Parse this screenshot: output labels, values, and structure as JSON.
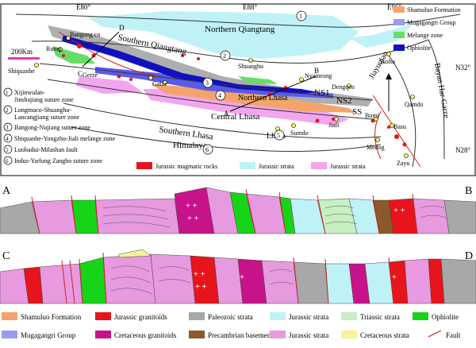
{
  "map": {
    "longitudes": [
      "E80°",
      "E88°",
      "E96°"
    ],
    "latitudes": [
      "N32°",
      "N28°"
    ],
    "scale": "200Km",
    "terranes": [
      "Northern Qiangtang",
      "Southern Qiangtang",
      "Northern Lhasa",
      "Central Lhasa",
      "Southern Lhasa",
      "Himalaya",
      "Bayan Har-Garze",
      "Jiayuqiao"
    ],
    "places": [
      "Bangong co",
      "Rutog",
      "Shiquanhe",
      "Gerze",
      "Gaize",
      "Shuanghu",
      "Nyainrong",
      "Dengqen",
      "Yushu",
      "Qamdo",
      "Jiali",
      "Lhasa",
      "Sumdo",
      "Bomi",
      "Basu",
      "Medog",
      "Zayu"
    ],
    "profile_points": [
      "A",
      "B",
      "C",
      "D"
    ],
    "zone_labels": [
      "NS1",
      "NS2",
      "SS"
    ],
    "sutures": [
      {
        "num": "1",
        "name": "Xijinwulan-\nJinshajiang suture zone"
      },
      {
        "num": "2",
        "name": "Longmuco-Shuanghu-\nLancangjiang suture zone"
      },
      {
        "num": "3",
        "name": "Bangong-Nujiang suture zone"
      },
      {
        "num": "4",
        "name": "Shiquanhe-Yongzhu-Jiali melange zone"
      },
      {
        "num": "5",
        "name": "Luobadui-Milashan fault"
      },
      {
        "num": "6",
        "name": "Indus-Yarlung Zangbo suture zone"
      }
    ],
    "legend_right": [
      {
        "label": "Shamuluo Formation",
        "color": "#f4a46a"
      },
      {
        "label": "Mugagangri Group",
        "color": "#9b9bf0"
      },
      {
        "label": "Melange zone",
        "color": "#66dd66"
      },
      {
        "label": "Ophiolite",
        "color": "#1010c0"
      }
    ],
    "legend_bottom_map": [
      {
        "label": "Jurassic magmatic rocks",
        "color": "#e8141c"
      },
      {
        "label": "Jurassic strata",
        "color": "#bff2f7"
      },
      {
        "label": "Jurassic strata",
        "color": "#f2a6f0"
      }
    ]
  },
  "sections": {
    "ab_left": "A",
    "ab_right": "B",
    "cd_left": "C",
    "cd_right": "D"
  },
  "legend": [
    {
      "label": "Shamuluo Formation",
      "color": "#f4a46a"
    },
    {
      "label": "Jurassic granitoids",
      "color": "#e8141c"
    },
    {
      "label": "Paleozoic strata",
      "color": "#a8a8a8"
    },
    {
      "label": "Jurassic strata",
      "color": "#bff2f7"
    },
    {
      "label": "Triassic strata",
      "color": "#c6efc2"
    },
    {
      "label": "Ophiolite",
      "color": "#18d418"
    },
    {
      "label": "Mugagangri Group",
      "color": "#9b9bf0"
    },
    {
      "label": "Cretaceous granitoids",
      "color": "#c8128a"
    },
    {
      "label": "Precambrian basement",
      "color": "#8b5a2b"
    },
    {
      "label": "Jurassic strata",
      "color": "#e79ae0"
    },
    {
      "label": "Cretaceous strata",
      "color": "#f8f29a"
    },
    {
      "label": "Fault",
      "color": "#d32020"
    }
  ]
}
